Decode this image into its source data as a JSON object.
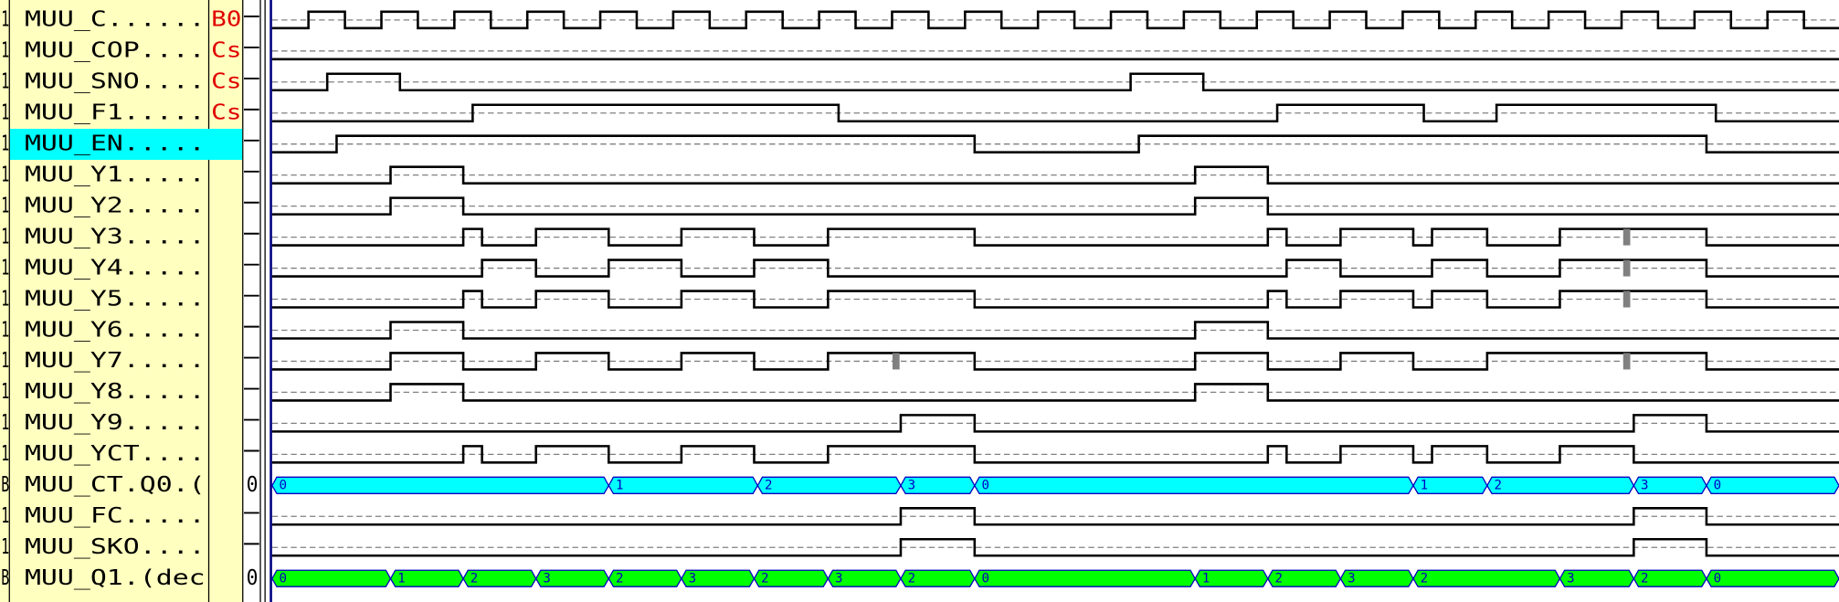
{
  "rows": [
    {
      "prefix": "1",
      "name": "MUU_C......",
      "flag": "B0"
    },
    {
      "prefix": "1",
      "name": "MUU_COP....",
      "flag": "Cs"
    },
    {
      "prefix": "1",
      "name": "MUU_SNO....",
      "flag": "Cs"
    },
    {
      "prefix": "1",
      "name": "MUU_F1.....",
      "flag": "Cs"
    },
    {
      "prefix": "1",
      "name": "MUU_EN....."
    },
    {
      "prefix": "1",
      "name": "MUU_Y1....."
    },
    {
      "prefix": "1",
      "name": "MUU_Y2....."
    },
    {
      "prefix": "1",
      "name": "MUU_Y3....."
    },
    {
      "prefix": "1",
      "name": "MUU_Y4....."
    },
    {
      "prefix": "1",
      "name": "MUU_Y5....."
    },
    {
      "prefix": "1",
      "name": "MUU_Y6....."
    },
    {
      "prefix": "1",
      "name": "MUU_Y7....."
    },
    {
      "prefix": "1",
      "name": "MUU_Y8....."
    },
    {
      "prefix": "1",
      "name": "MUU_Y9....."
    },
    {
      "prefix": "1",
      "name": "MUU_YCT...."
    },
    {
      "prefix": "B",
      "name": "MUU_CT.Q0.(",
      "value": "0",
      "segments": [
        "0",
        "1",
        "2",
        "3",
        "0",
        "1",
        "2",
        "3",
        "0"
      ]
    },
    {
      "prefix": "1",
      "name": "MUU_FC....."
    },
    {
      "prefix": "1",
      "name": "MUU_SKO...."
    },
    {
      "prefix": "B",
      "name": "MUU_Q1.(dec",
      "value": "0",
      "segments": [
        "0",
        "1",
        "2",
        "3",
        "2",
        "3",
        "2",
        "3",
        "2",
        "0",
        "1",
        "2",
        "3",
        "2",
        "3",
        "2",
        "0"
      ]
    }
  ]
}
